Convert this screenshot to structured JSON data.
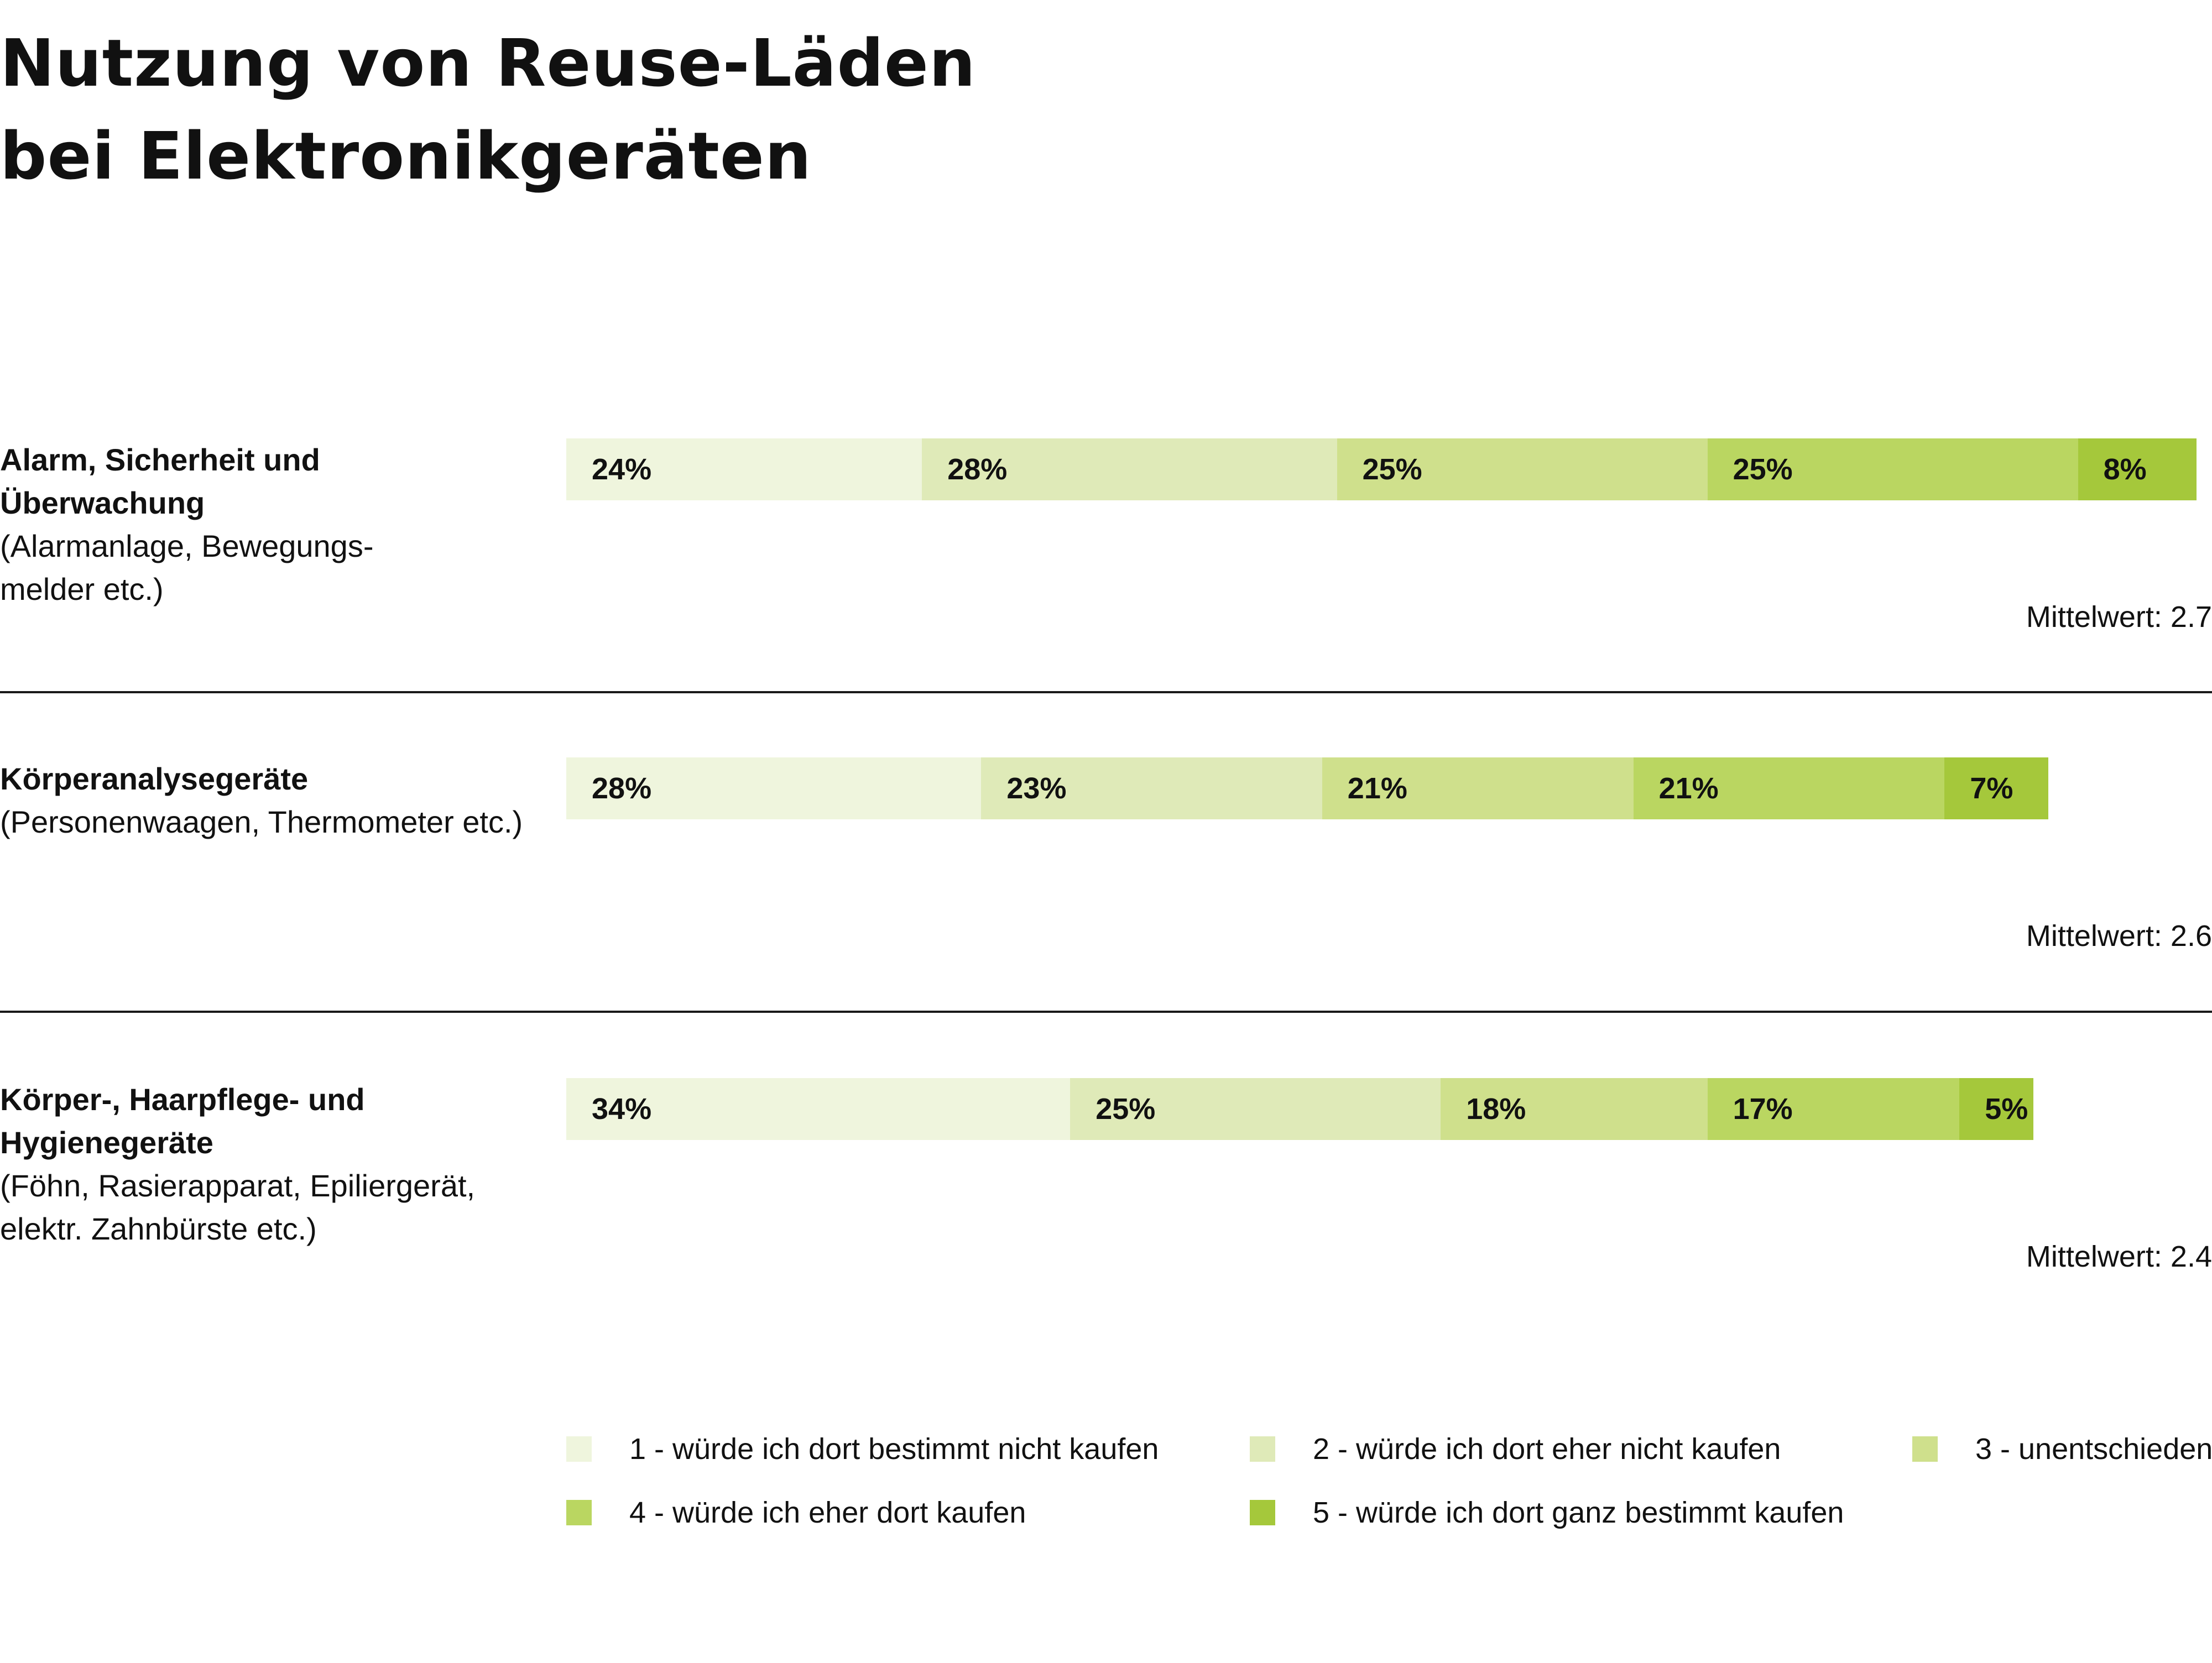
{
  "title": [
    "Nutzung von Reuse-Läden",
    "bei Elektronikgeräten"
  ],
  "colors": [
    "#eff5dd",
    "#dfeab8",
    "#cfe08c",
    "#bad661",
    "#a5c83b"
  ],
  "chart_data": {
    "type": "bar",
    "orientation": "horizontal",
    "stacked": true,
    "categories": [
      {
        "name": [
          "Alarm, Sicherheit und",
          "Überwachung"
        ],
        "description": [
          "(Alarmanlage, Bewegungs-",
          "melder etc.)"
        ],
        "mean_label": "Mittelwert: 2.7"
      },
      {
        "name": [
          "Körperanalysegeräte"
        ],
        "description": [
          "(Personenwaagen, Thermometer etc.)"
        ],
        "mean_label": "Mittelwert: 2.6"
      },
      {
        "name": [
          "Körper-, Haarpflege- und",
          "Hygienegeräte"
        ],
        "description": [
          "(Föhn, Rasierapparat, Epiliergerät,",
          "elektr. Zahnbürste etc.)"
        ],
        "mean_label": "Mittelwert: 2.4"
      }
    ],
    "series": [
      {
        "name": "1 - würde ich dort bestimmt nicht kaufen",
        "values": [
          24,
          28,
          34
        ],
        "labels": [
          "24%",
          "28%",
          "34%"
        ]
      },
      {
        "name": "2 - würde ich dort eher nicht kaufen",
        "values": [
          28,
          23,
          25
        ],
        "labels": [
          "28%",
          "23%",
          "25%"
        ]
      },
      {
        "name": "3 - unentschieden",
        "values": [
          25,
          21,
          18
        ],
        "labels": [
          "25%",
          "21%",
          "18%"
        ]
      },
      {
        "name": "4 - würde ich eher dort kaufen",
        "values": [
          25,
          21,
          17
        ],
        "labels": [
          "25%",
          "21%",
          "17%"
        ]
      },
      {
        "name": "5 - würde ich dort ganz bestimmt kaufen",
        "values": [
          8,
          7,
          5
        ],
        "labels": [
          "8%",
          "7%",
          "5%"
        ]
      }
    ],
    "legend_position": "bottom"
  }
}
